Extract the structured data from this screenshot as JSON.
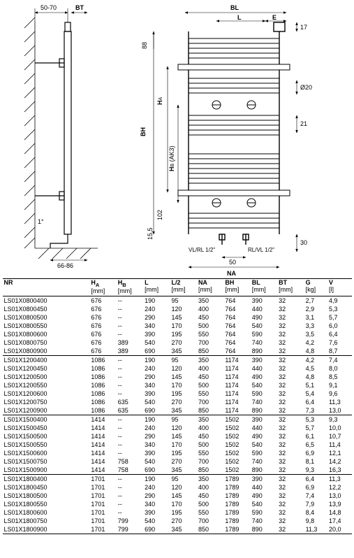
{
  "diagram": {
    "labels": {
      "d50_70": "50-70",
      "BT": "BT",
      "d66_86": "66-86",
      "d1deg": "1°",
      "BL": "BL",
      "L": "L",
      "E": "E",
      "d17": "17",
      "d88": "88",
      "HA": "H",
      "HAsub": "A",
      "BH": "BH",
      "HB": "H",
      "HBsub": "B",
      "AK3": " (AK3)",
      "d102": "102",
      "d155": "15,5",
      "VLRL": "VL/RL 1/2\"",
      "RLVL": "RL/VL 1/2\"",
      "d50": "50",
      "NA": "NA",
      "d20": "Ø20",
      "d21": "21",
      "d30": "30"
    },
    "colors": {
      "line": "#000",
      "hatch": "#000",
      "bg": "#fff"
    }
  },
  "table": {
    "columns": [
      {
        "key": "NR",
        "label": "NR",
        "unit": ""
      },
      {
        "key": "HA",
        "label": "H<sub>A</sub>",
        "unit": "[mm]"
      },
      {
        "key": "HB",
        "label": "H<sub>B</sub>",
        "unit": "[mm]"
      },
      {
        "key": "L",
        "label": "L",
        "unit": "[mm]"
      },
      {
        "key": "L2",
        "label": "L/2",
        "unit": "[mm]"
      },
      {
        "key": "NA",
        "label": "NA",
        "unit": "[mm]"
      },
      {
        "key": "BH",
        "label": "BH",
        "unit": "[mm]"
      },
      {
        "key": "BL",
        "label": "BL",
        "unit": "[mm]"
      },
      {
        "key": "BT",
        "label": "BT",
        "unit": "[mm]"
      },
      {
        "key": "G",
        "label": "G",
        "unit": "[kg]"
      },
      {
        "key": "V",
        "label": "V",
        "unit": "[l]"
      }
    ],
    "groups": [
      [
        [
          "LS01X0800400",
          "676",
          "--",
          "190",
          "95",
          "350",
          "764",
          "390",
          "32",
          "2,7",
          "4,9"
        ],
        [
          "LS01X0800450",
          "676",
          "--",
          "240",
          "120",
          "400",
          "764",
          "440",
          "32",
          "2,9",
          "5,3"
        ],
        [
          "LS01X0800500",
          "676",
          "--",
          "290",
          "145",
          "450",
          "764",
          "490",
          "32",
          "3,1",
          "5,7"
        ],
        [
          "LS01X0800550",
          "676",
          "--",
          "340",
          "170",
          "500",
          "764",
          "540",
          "32",
          "3,3",
          "6,0"
        ],
        [
          "LS01X0800600",
          "676",
          "--",
          "390",
          "195",
          "550",
          "764",
          "590",
          "32",
          "3,5",
          "6,4"
        ],
        [
          "LS01X0800750",
          "676",
          "389",
          "540",
          "270",
          "700",
          "764",
          "740",
          "32",
          "4,2",
          "7,6"
        ],
        [
          "LS01X0800900",
          "676",
          "389",
          "690",
          "345",
          "850",
          "764",
          "890",
          "32",
          "4,8",
          "8,7"
        ]
      ],
      [
        [
          "LS01X1200400",
          "1086",
          "--",
          "190",
          "95",
          "350",
          "1174",
          "390",
          "32",
          "4,2",
          "7,4"
        ],
        [
          "LS01X1200450",
          "1086",
          "--",
          "240",
          "120",
          "400",
          "1174",
          "440",
          "32",
          "4,5",
          "8,0"
        ],
        [
          "LS01X1200500",
          "1086",
          "--",
          "290",
          "145",
          "450",
          "1174",
          "490",
          "32",
          "4,8",
          "8,5"
        ],
        [
          "LS01X1200550",
          "1086",
          "--",
          "340",
          "170",
          "500",
          "1174",
          "540",
          "32",
          "5,1",
          "9,1"
        ],
        [
          "LS01X1200600",
          "1086",
          "--",
          "390",
          "195",
          "550",
          "1174",
          "590",
          "32",
          "5,4",
          "9,6"
        ],
        [
          "LS01X1200750",
          "1086",
          "635",
          "540",
          "270",
          "700",
          "1174",
          "740",
          "32",
          "6,4",
          "11,3"
        ],
        [
          "LS01X1200900",
          "1086",
          "635",
          "690",
          "345",
          "850",
          "1174",
          "890",
          "32",
          "7,3",
          "13,0"
        ]
      ],
      [
        [
          "LS01X1500400",
          "1414",
          "--",
          "190",
          "95",
          "350",
          "1502",
          "390",
          "32",
          "5,3",
          "9,3"
        ],
        [
          "LS01X1500450",
          "1414",
          "--",
          "240",
          "120",
          "400",
          "1502",
          "440",
          "32",
          "5,7",
          "10,0"
        ],
        [
          "LS01X1500500",
          "1414",
          "--",
          "290",
          "145",
          "450",
          "1502",
          "490",
          "32",
          "6,1",
          "10,7"
        ],
        [
          "LS01X1500550",
          "1414",
          "--",
          "340",
          "170",
          "500",
          "1502",
          "540",
          "32",
          "6,5",
          "11,4"
        ],
        [
          "LS01X1500600",
          "1414",
          "--",
          "390",
          "195",
          "550",
          "1502",
          "590",
          "32",
          "6,9",
          "12,1"
        ],
        [
          "LS01X1500750",
          "1414",
          "758",
          "540",
          "270",
          "700",
          "1502",
          "740",
          "32",
          "8,1",
          "14,2"
        ],
        [
          "LS01X1500900",
          "1414",
          "758",
          "690",
          "345",
          "850",
          "1502",
          "890",
          "32",
          "9,3",
          "16,3"
        ]
      ],
      [
        [
          "LS01X1800400",
          "1701",
          "--",
          "190",
          "95",
          "350",
          "1789",
          "390",
          "32",
          "6,4",
          "11,3"
        ],
        [
          "LS01X1800450",
          "1701",
          "--",
          "240",
          "120",
          "400",
          "1789",
          "440",
          "32",
          "6,9",
          "12,2"
        ],
        [
          "LS01X1800500",
          "1701",
          "--",
          "290",
          "145",
          "450",
          "1789",
          "490",
          "32",
          "7,4",
          "13,0"
        ],
        [
          "LS01X1800550",
          "1701",
          "--",
          "340",
          "170",
          "500",
          "1789",
          "540",
          "32",
          "7,9",
          "13,9"
        ],
        [
          "LS01X1800600",
          "1701",
          "--",
          "390",
          "195",
          "550",
          "1789",
          "590",
          "32",
          "8,4",
          "14,8"
        ],
        [
          "LS01X1800750",
          "1701",
          "799",
          "540",
          "270",
          "700",
          "1789",
          "740",
          "32",
          "9,8",
          "17,4"
        ],
        [
          "LS01X1800900",
          "1701",
          "799",
          "690",
          "345",
          "850",
          "1789",
          "890",
          "32",
          "11,3",
          "20,0"
        ]
      ]
    ]
  }
}
